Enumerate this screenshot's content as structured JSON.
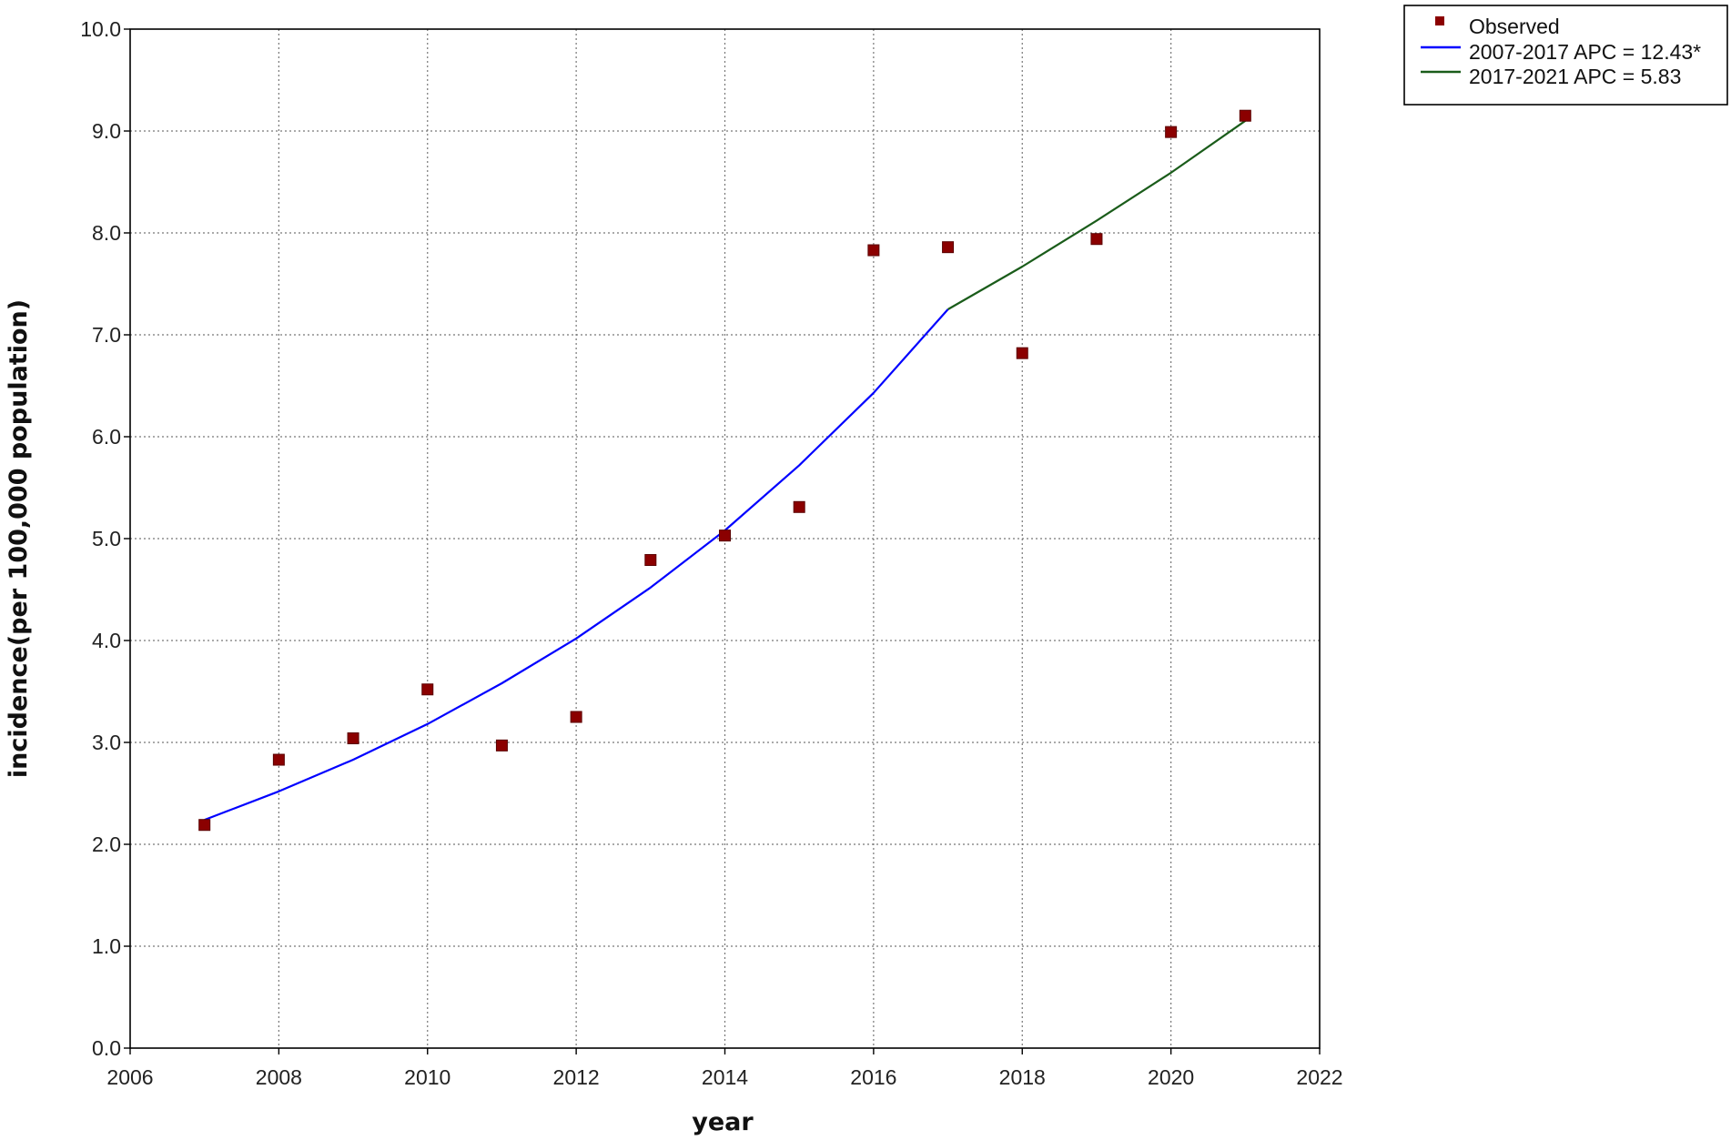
{
  "chart_data": {
    "type": "scatter",
    "xlabel": "year",
    "ylabel": "incidence(per 100,000 population)",
    "xlim": [
      2006,
      2022
    ],
    "ylim": [
      0,
      10
    ],
    "x_ticks": [
      "2006",
      "2008",
      "2010",
      "2012",
      "2014",
      "2016",
      "2018",
      "2020",
      "2022"
    ],
    "y_ticks": [
      "0.0",
      "1.0",
      "2.0",
      "3.0",
      "4.0",
      "5.0",
      "6.0",
      "7.0",
      "8.0",
      "9.0",
      "10.0"
    ],
    "grid": true,
    "legend_position": "top-right, outside plot",
    "observed": {
      "name": "Observed",
      "color": "#8b0000",
      "x": [
        2007,
        2008,
        2009,
        2010,
        2011,
        2012,
        2013,
        2014,
        2015,
        2016,
        2017,
        2018,
        2019,
        2020,
        2021
      ],
      "y": [
        2.19,
        2.83,
        3.04,
        3.52,
        2.97,
        3.25,
        4.79,
        5.03,
        5.31,
        7.83,
        7.86,
        6.82,
        7.94,
        8.99,
        9.15
      ]
    },
    "segments": [
      {
        "name": "2007-2017 APC  = 12.43*",
        "color": "#0000ff",
        "x": [
          2007,
          2008,
          2009,
          2010,
          2011,
          2012,
          2013,
          2014,
          2015,
          2016,
          2017
        ],
        "y": [
          2.24,
          2.52,
          2.83,
          3.18,
          3.58,
          4.02,
          4.52,
          5.08,
          5.72,
          6.43,
          7.25
        ]
      },
      {
        "name": "2017-2021 APC  =  5.83",
        "color": "#1a5c1a",
        "x": [
          2017,
          2018,
          2019,
          2020,
          2021
        ],
        "y": [
          7.25,
          7.67,
          8.12,
          8.59,
          9.1
        ]
      }
    ]
  }
}
